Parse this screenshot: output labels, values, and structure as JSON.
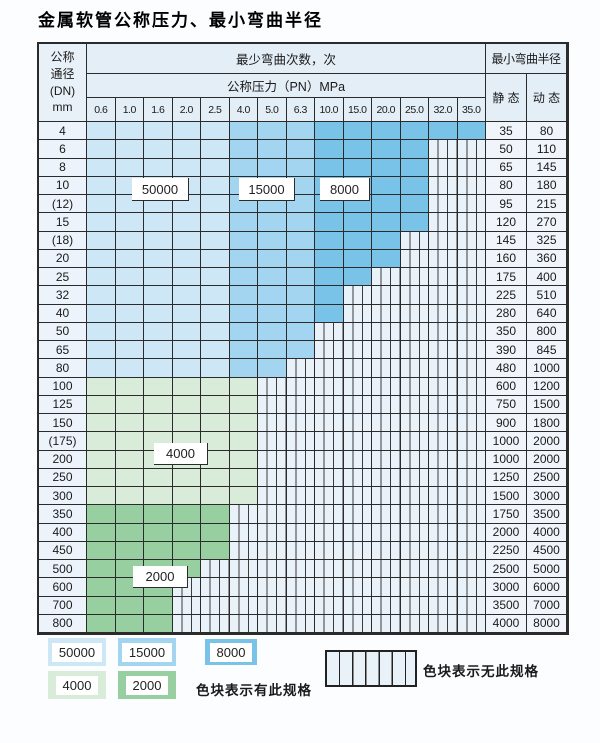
{
  "title": "金属软管公称压力、最小弯曲半径",
  "table": {
    "corner_lines": [
      "公称",
      "通径",
      "(DN)",
      "mm"
    ],
    "bend_header": "最少弯曲次数，次",
    "pressure_header": "公称压力（PN）MPa",
    "radius_header": "最小弯曲半径",
    "static_label": "静 态",
    "dynamic_label": "动 态",
    "pressures": [
      "0.6",
      "1.0",
      "1.6",
      "2.0",
      "2.5",
      "4.0",
      "5.0",
      "6.3",
      "10.0",
      "15.0",
      "20.0",
      "25.0",
      "32.0",
      "35.0"
    ],
    "rows": [
      {
        "dn": "4",
        "region": "blue",
        "colored": 14,
        "static": "35",
        "dynamic": "80"
      },
      {
        "dn": "6",
        "region": "blue",
        "colored": 12,
        "static": "50",
        "dynamic": "110"
      },
      {
        "dn": "8",
        "region": "blue",
        "colored": 12,
        "static": "65",
        "dynamic": "145"
      },
      {
        "dn": "10",
        "region": "blue",
        "colored": 12,
        "static": "80",
        "dynamic": "180"
      },
      {
        "dn": "(12)",
        "region": "blue",
        "colored": 12,
        "static": "95",
        "dynamic": "215"
      },
      {
        "dn": "15",
        "region": "blue",
        "colored": 12,
        "static": "120",
        "dynamic": "270"
      },
      {
        "dn": "(18)",
        "region": "blue",
        "colored": 11,
        "static": "145",
        "dynamic": "325"
      },
      {
        "dn": "20",
        "region": "blue",
        "colored": 11,
        "static": "160",
        "dynamic": "360"
      },
      {
        "dn": "25",
        "region": "blue",
        "colored": 10,
        "static": "175",
        "dynamic": "400"
      },
      {
        "dn": "32",
        "region": "blue",
        "colored": 9,
        "static": "225",
        "dynamic": "510"
      },
      {
        "dn": "40",
        "region": "blue",
        "colored": 9,
        "static": "280",
        "dynamic": "640"
      },
      {
        "dn": "50",
        "region": "blue",
        "colored": 8,
        "static": "350",
        "dynamic": "800"
      },
      {
        "dn": "65",
        "region": "blue",
        "colored": 8,
        "static": "390",
        "dynamic": "845"
      },
      {
        "dn": "80",
        "region": "blue",
        "colored": 7,
        "static": "480",
        "dynamic": "1000"
      },
      {
        "dn": "100",
        "region": "4000",
        "colored": 6,
        "static": "600",
        "dynamic": "1200"
      },
      {
        "dn": "125",
        "region": "4000",
        "colored": 6,
        "static": "750",
        "dynamic": "1500"
      },
      {
        "dn": "150",
        "region": "4000",
        "colored": 6,
        "static": "900",
        "dynamic": "1800"
      },
      {
        "dn": "(175)",
        "region": "4000",
        "colored": 6,
        "static": "1000",
        "dynamic": "2000"
      },
      {
        "dn": "200",
        "region": "4000",
        "colored": 6,
        "static": "1000",
        "dynamic": "2000"
      },
      {
        "dn": "250",
        "region": "4000",
        "colored": 6,
        "static": "1250",
        "dynamic": "2500"
      },
      {
        "dn": "300",
        "region": "4000",
        "colored": 6,
        "static": "1500",
        "dynamic": "3000"
      },
      {
        "dn": "350",
        "region": "2000",
        "colored": 5,
        "static": "1750",
        "dynamic": "3500"
      },
      {
        "dn": "400",
        "region": "2000",
        "colored": 5,
        "static": "2000",
        "dynamic": "4000"
      },
      {
        "dn": "450",
        "region": "2000",
        "colored": 5,
        "static": "2250",
        "dynamic": "4500"
      },
      {
        "dn": "500",
        "region": "2000",
        "colored": 4,
        "static": "2500",
        "dynamic": "5000"
      },
      {
        "dn": "600",
        "region": "2000",
        "colored": 3,
        "static": "3000",
        "dynamic": "6000"
      },
      {
        "dn": "700",
        "region": "2000",
        "colored": 3,
        "static": "3500",
        "dynamic": "7000"
      },
      {
        "dn": "800",
        "region": "2000",
        "colored": 3,
        "static": "4000",
        "dynamic": "8000"
      }
    ]
  },
  "cycle_regions": {
    "blue_bands": [
      {
        "cycles": "50000",
        "from": 0,
        "to": 4,
        "color": "#cde7f7"
      },
      {
        "cycles": "15000",
        "from": 5,
        "to": 7,
        "color": "#a4d5f0"
      },
      {
        "cycles": "8000",
        "from": 8,
        "to": 13,
        "color": "#79c3e9"
      }
    ],
    "green_bands": [
      {
        "cycles": "4000",
        "color": "#d9ecd9"
      },
      {
        "cycles": "2000",
        "color": "#98cfa0"
      }
    ]
  },
  "overlay_labels": {
    "l50000": "50000",
    "l15000": "15000",
    "l8000": "8000",
    "l4000": "4000",
    "l2000": "2000"
  },
  "legend": {
    "has_spec_items": [
      {
        "cycles": "50000",
        "color": "#cde7f7"
      },
      {
        "cycles": "15000",
        "color": "#a4d5f0"
      },
      {
        "cycles": "8000",
        "color": "#79c3e9"
      },
      {
        "cycles": "4000",
        "color": "#d9ecd9"
      },
      {
        "cycles": "2000",
        "color": "#98cfa0"
      }
    ],
    "has_spec_text": "色块表示有此规格",
    "no_spec_text": "色块表示无此规格"
  }
}
